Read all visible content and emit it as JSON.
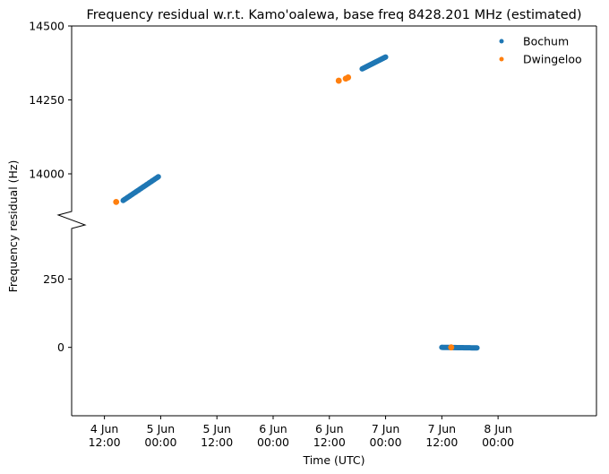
{
  "chart_data": {
    "type": "scatter",
    "title": "Frequency residual w.r.t. Kamo'oalewa, base freq 8428.201 MHz (estimated)",
    "xlabel": "Time (UTC)",
    "ylabel": "Frequency residual (Hz)",
    "broken_y_axis": true,
    "ylim_upper": [
      13800,
      14500
    ],
    "ylim_lower": [
      -250,
      510
    ],
    "xlim": [
      "2025-06-04T05:00",
      "2025-06-08T21:00"
    ],
    "x_tick_labels": [
      {
        "x": "2025-06-04T12:00",
        "line1": "4 Jun",
        "line2": "12:00"
      },
      {
        "x": "2025-06-05T00:00",
        "line1": "5 Jun",
        "line2": "00:00"
      },
      {
        "x": "2025-06-05T12:00",
        "line1": "5 Jun",
        "line2": "12:00"
      },
      {
        "x": "2025-06-06T00:00",
        "line1": "6 Jun",
        "line2": "00:00"
      },
      {
        "x": "2025-06-06T12:00",
        "line1": "6 Jun",
        "line2": "12:00"
      },
      {
        "x": "2025-06-07T00:00",
        "line1": "7 Jun",
        "line2": "00:00"
      },
      {
        "x": "2025-06-07T12:00",
        "line1": "7 Jun",
        "line2": "12:00"
      },
      {
        "x": "2025-06-08T00:00",
        "line1": "8 Jun",
        "line2": "00:00"
      }
    ],
    "y_ticks_upper": [
      14000,
      14250,
      14500
    ],
    "y_ticks_lower": [
      0,
      250
    ],
    "legend_position": "top-right",
    "series": [
      {
        "name": "Bochum",
        "color": "#1f77b4",
        "segments": [
          {
            "x_start": "2025-06-04T16:00",
            "x_end": "2025-06-04T23:30",
            "y_start": 13910,
            "y_end": 13990
          },
          {
            "x_start": "2025-06-06T19:00",
            "x_end": "2025-06-07T00:00",
            "y_start": 14355,
            "y_end": 14395
          },
          {
            "x_start": "2025-06-07T12:00",
            "x_end": "2025-06-07T19:30",
            "y_start": 0,
            "y_end": -2
          }
        ]
      },
      {
        "name": "Dwingeloo",
        "color": "#ff7f0e",
        "points": [
          {
            "x": "2025-06-04T14:30",
            "y": 13905
          },
          {
            "x": "2025-06-06T14:00",
            "y": 14315
          },
          {
            "x": "2025-06-06T15:30",
            "y": 14322
          },
          {
            "x": "2025-06-06T16:00",
            "y": 14326
          },
          {
            "x": "2025-06-07T14:00",
            "y": 0
          }
        ]
      }
    ]
  }
}
